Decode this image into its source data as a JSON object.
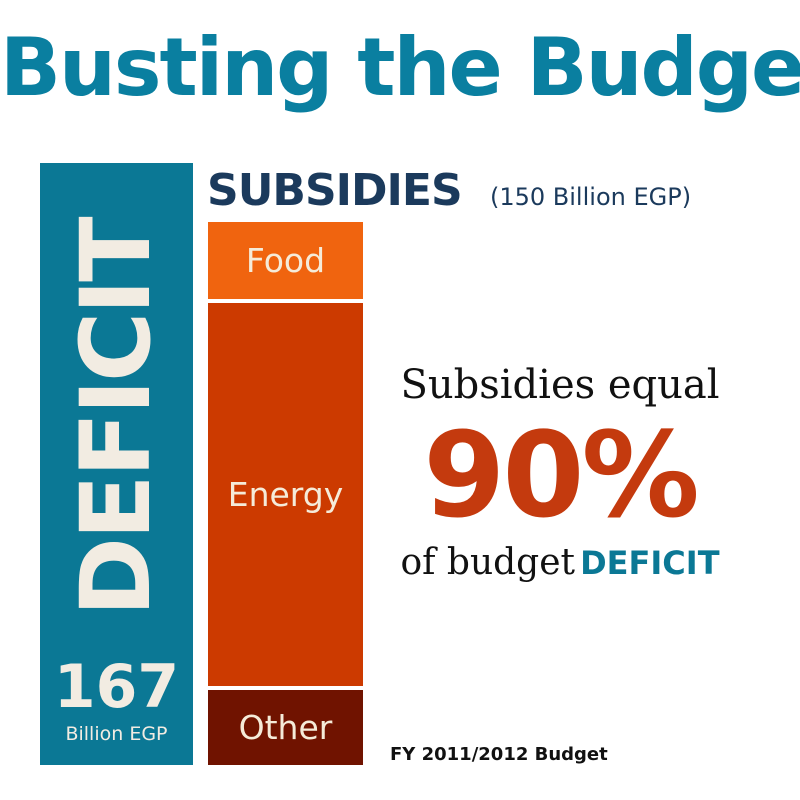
{
  "title": "Busting the Budget",
  "chart_data": {
    "type": "bar",
    "deficit": {
      "label": "DEFICIT",
      "value": 167,
      "unit": "Billion EGP"
    },
    "subsidies": {
      "label": "SUBSIDIES",
      "total_text": "(150 Billion EGP)",
      "total": 150,
      "segments": [
        {
          "name": "Food",
          "color": "#f0640f"
        },
        {
          "name": "Energy",
          "color": "#cc3a00"
        },
        {
          "name": "Other",
          "color": "#701300"
        }
      ]
    },
    "annotation": {
      "line1": "Subsidies equal",
      "value": "90%",
      "line3": "of budget",
      "line3_highlight": "DEFICIT"
    },
    "footnote": "FY 2011/2012 Budget"
  },
  "colors": {
    "title": "#0a7fa0",
    "deficit_bar": "#0b7895",
    "subsidies_title": "#1b3a5c",
    "highlight": "#c43a0e"
  }
}
